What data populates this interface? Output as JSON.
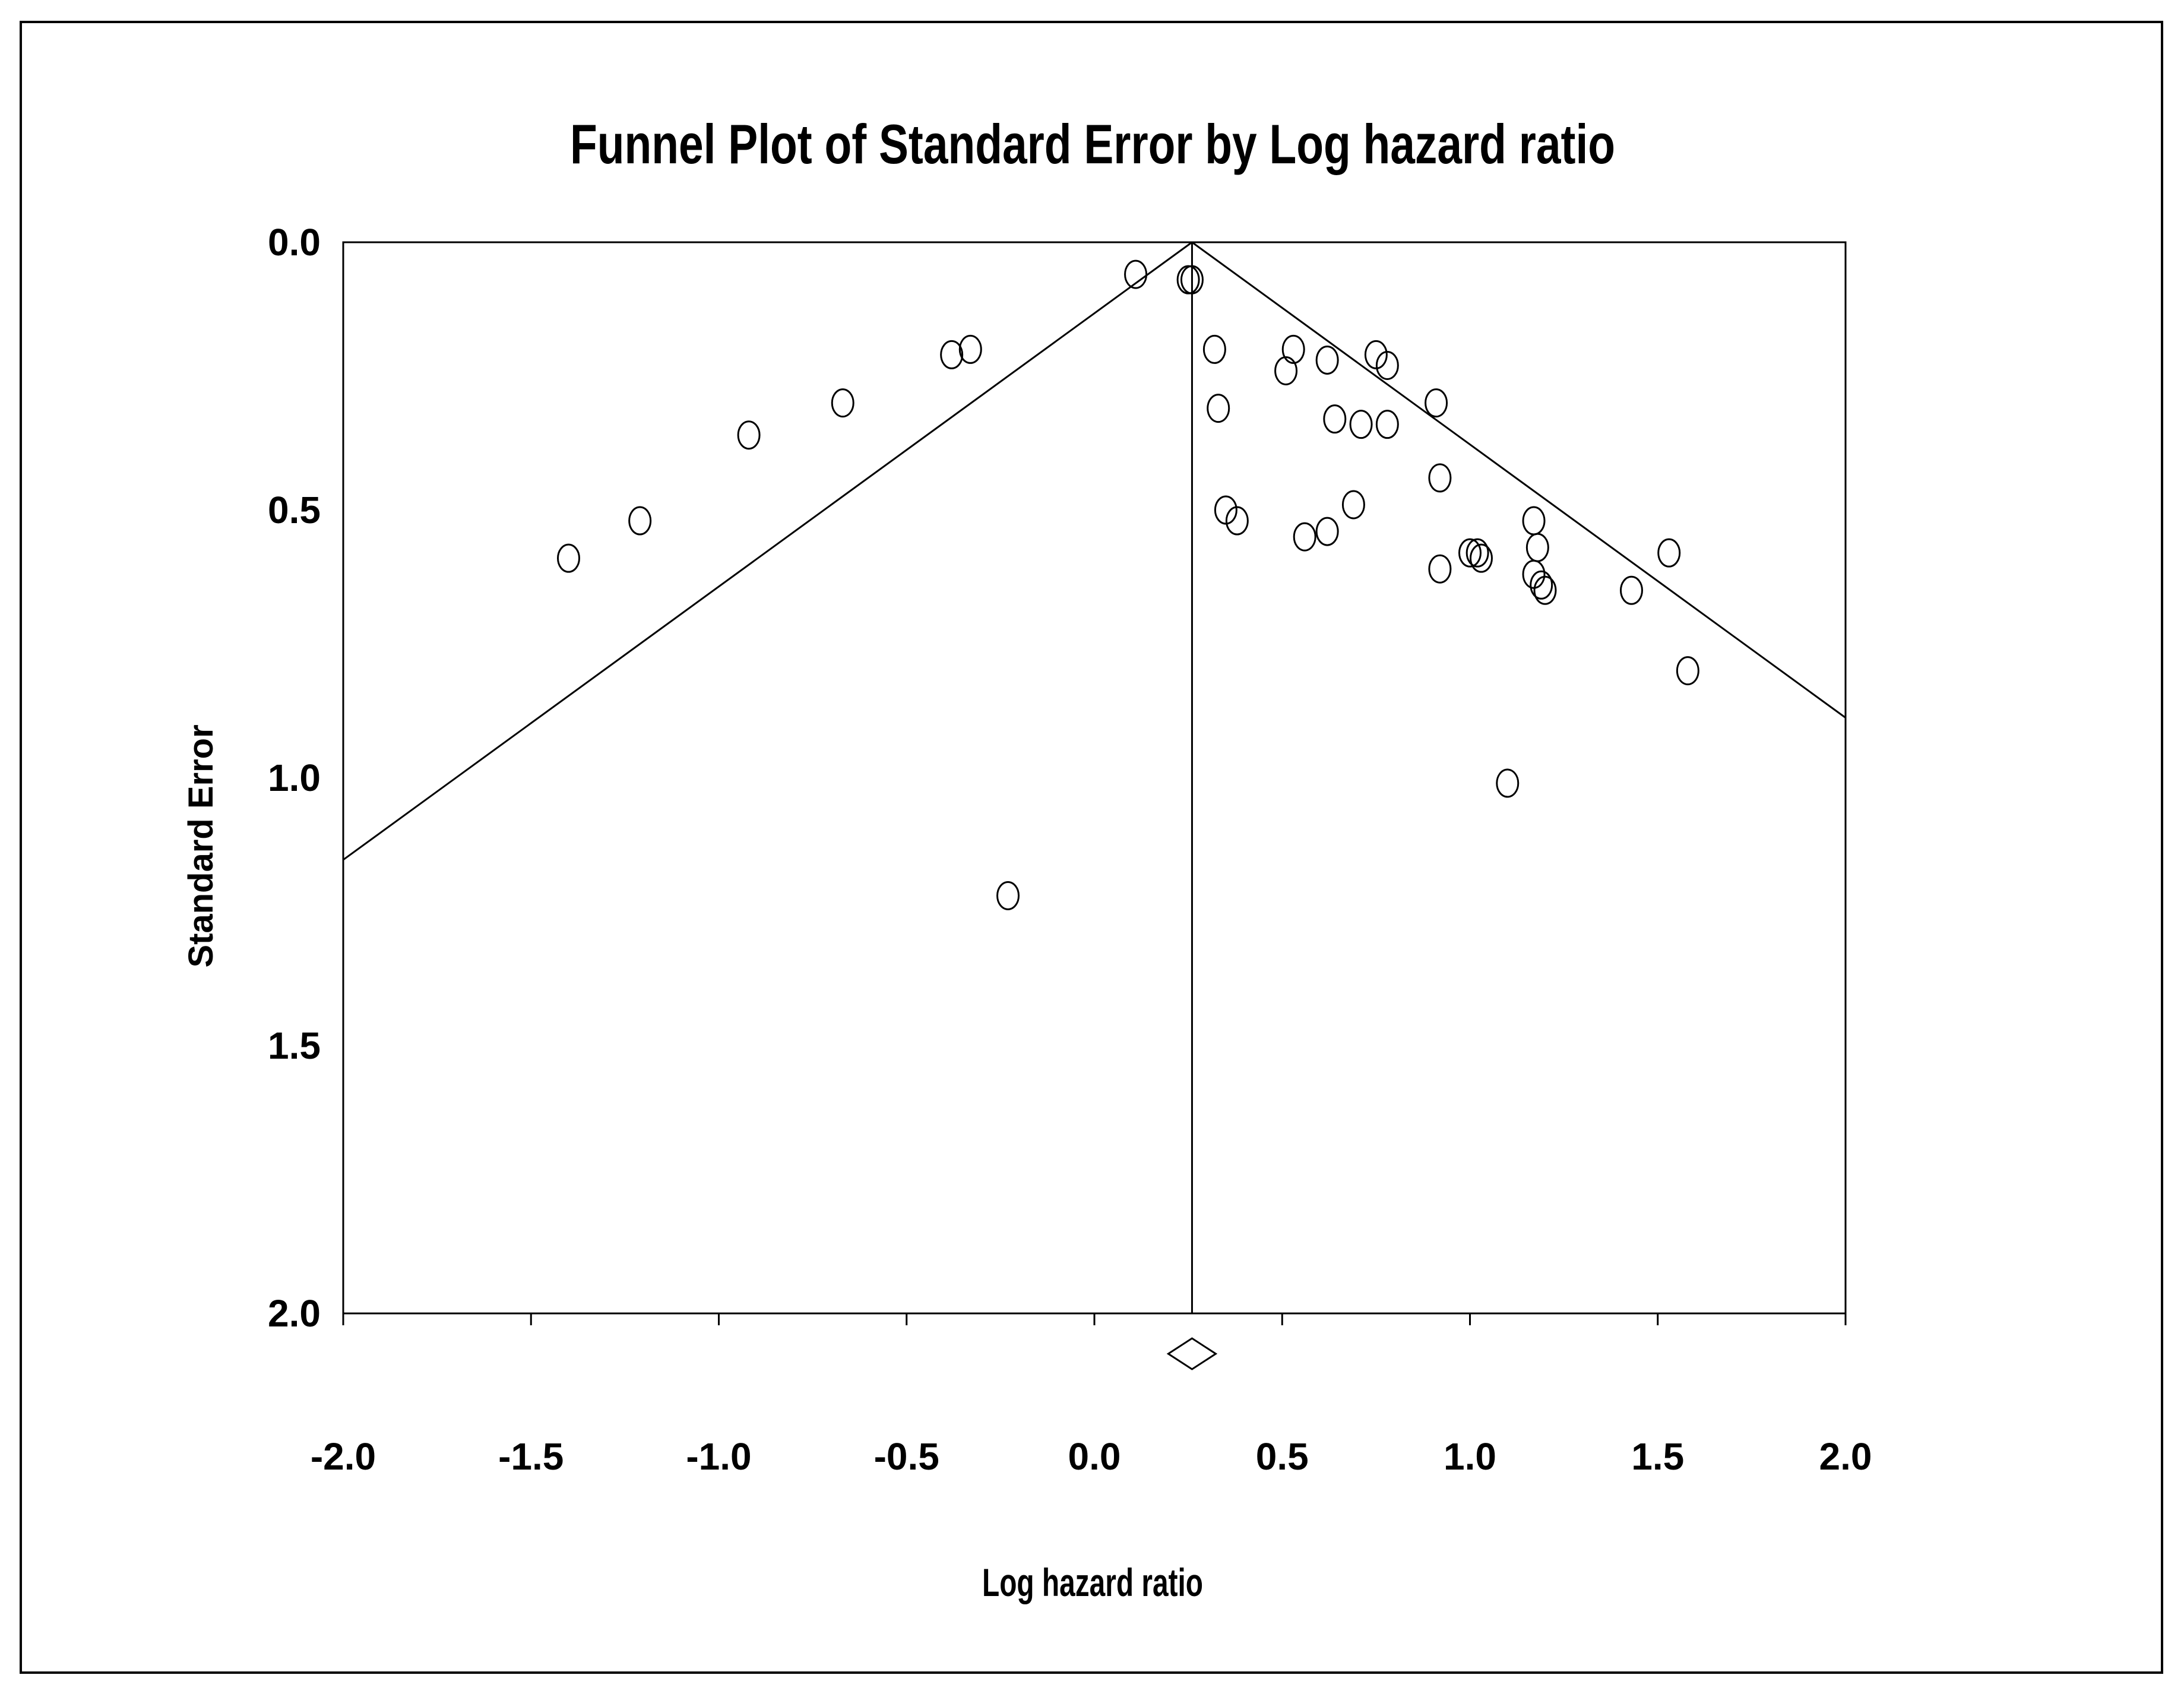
{
  "chart_data": {
    "type": "scatter",
    "title": "Funnel Plot of Standard Error by Log hazard ratio",
    "xlabel": "Log hazard ratio",
    "ylabel": "Standard Error",
    "xlim": [
      -2.0,
      2.0
    ],
    "ylim": [
      0.0,
      2.0
    ],
    "y_inverted": true,
    "x_ticks": [
      "-2.0",
      "-1.5",
      "-1.0",
      "-0.5",
      "0.0",
      "0.5",
      "1.0",
      "1.5",
      "2.0"
    ],
    "y_ticks": [
      "0.0",
      "0.5",
      "1.0",
      "1.5",
      "2.0"
    ],
    "pooled_estimate": 0.26,
    "funnel_limits": "pseudo 95% confidence limits (estimate ± 1.96 × SE)",
    "grid": false,
    "legend": "none",
    "marker": "open-circle",
    "points": [
      {
        "x": -1.4,
        "y": 0.59
      },
      {
        "x": -1.21,
        "y": 0.52
      },
      {
        "x": -0.92,
        "y": 0.36
      },
      {
        "x": -0.67,
        "y": 0.3
      },
      {
        "x": -0.38,
        "y": 0.21
      },
      {
        "x": -0.33,
        "y": 0.2
      },
      {
        "x": -0.23,
        "y": 1.22
      },
      {
        "x": 0.11,
        "y": 0.06
      },
      {
        "x": 0.25,
        "y": 0.07
      },
      {
        "x": 0.26,
        "y": 0.07
      },
      {
        "x": 0.32,
        "y": 0.2
      },
      {
        "x": 0.33,
        "y": 0.31
      },
      {
        "x": 0.35,
        "y": 0.5
      },
      {
        "x": 0.38,
        "y": 0.52
      },
      {
        "x": 0.51,
        "y": 0.24
      },
      {
        "x": 0.53,
        "y": 0.2
      },
      {
        "x": 0.56,
        "y": 0.55
      },
      {
        "x": 0.62,
        "y": 0.22
      },
      {
        "x": 0.62,
        "y": 0.54
      },
      {
        "x": 0.64,
        "y": 0.33
      },
      {
        "x": 0.69,
        "y": 0.49
      },
      {
        "x": 0.71,
        "y": 0.34
      },
      {
        "x": 0.75,
        "y": 0.21
      },
      {
        "x": 0.78,
        "y": 0.23
      },
      {
        "x": 0.78,
        "y": 0.34
      },
      {
        "x": 0.91,
        "y": 0.3
      },
      {
        "x": 0.92,
        "y": 0.44
      },
      {
        "x": 0.92,
        "y": 0.61
      },
      {
        "x": 1.0,
        "y": 0.58
      },
      {
        "x": 1.02,
        "y": 0.58
      },
      {
        "x": 1.03,
        "y": 0.59
      },
      {
        "x": 1.1,
        "y": 1.01
      },
      {
        "x": 1.17,
        "y": 0.52
      },
      {
        "x": 1.17,
        "y": 0.62
      },
      {
        "x": 1.18,
        "y": 0.57
      },
      {
        "x": 1.19,
        "y": 0.64
      },
      {
        "x": 1.2,
        "y": 0.65
      },
      {
        "x": 1.43,
        "y": 0.65
      },
      {
        "x": 1.53,
        "y": 0.58
      },
      {
        "x": 1.58,
        "y": 0.8
      }
    ]
  }
}
